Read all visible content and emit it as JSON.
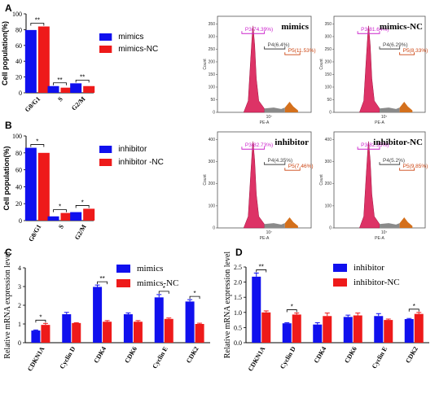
{
  "colors": {
    "blue": "#1010ee",
    "red": "#ee1a1a",
    "hist_main": "#dd3366",
    "hist_grey": "#8a8a8a",
    "hist_orange": "#d4701c",
    "gate_p3": "#cc22cc",
    "gate_p4": "#444444",
    "gate_p5": "#cc4411"
  },
  "chart_data": [
    {
      "panel": "A",
      "type": "bar",
      "ylabel": "Cell population(%)",
      "ylim": [
        0,
        100
      ],
      "yticks": [
        0,
        20,
        40,
        60,
        80,
        100
      ],
      "categories": [
        "G0/G1",
        "S",
        "G2/M"
      ],
      "series": [
        {
          "name": "mimics",
          "values": [
            79.5,
            8.5,
            12
          ]
        },
        {
          "name": "mimics-NC",
          "values": [
            84,
            6.5,
            8.5
          ]
        }
      ],
      "significance": [
        "**",
        "**",
        "**"
      ]
    },
    {
      "panel": "B",
      "type": "bar",
      "ylabel": "Cell population(%)",
      "ylim": [
        0,
        100
      ],
      "yticks": [
        0,
        20,
        40,
        60,
        80,
        100
      ],
      "categories": [
        "G0/G1",
        "S",
        "G2/M"
      ],
      "series": [
        {
          "name": "inhibitor",
          "values": [
            86,
            5,
            10
          ]
        },
        {
          "name": "inhibitor -NC",
          "values": [
            80,
            9,
            14
          ]
        }
      ],
      "significance": [
        "*",
        "*",
        "*"
      ]
    },
    {
      "panel": "C",
      "type": "bar",
      "ylabel": "Relative mRNA expression level",
      "ylim": [
        0,
        4
      ],
      "yticks": [
        0,
        1,
        2,
        3,
        4
      ],
      "categories": [
        "CDKN1A",
        "Cyclin D",
        "CDK4",
        "CDK6",
        "Cyclin E",
        "CDK2"
      ],
      "series": [
        {
          "name": "mimics",
          "values": [
            0.65,
            1.52,
            2.98,
            1.52,
            2.42,
            2.2
          ],
          "errors": [
            0.03,
            0.1,
            0.1,
            0.07,
            0.15,
            0.1
          ]
        },
        {
          "name": "mimics-NC",
          "values": [
            0.95,
            1.05,
            1.12,
            1.12,
            1.27,
            1.0
          ],
          "errors": [
            0.08,
            0.02,
            0.06,
            0.06,
            0.05,
            0.04
          ]
        }
      ],
      "significance": [
        "*",
        "",
        "**",
        "",
        "*",
        "*"
      ]
    },
    {
      "panel": "D",
      "type": "bar",
      "ylabel": "Relative mRNA expression level",
      "ylim": [
        0,
        2.5
      ],
      "yticks": [
        0.0,
        0.5,
        1.0,
        1.5,
        2.0,
        2.5
      ],
      "categories": [
        "CDKN1A",
        "Cyclin D",
        "CDK4",
        "CDK6",
        "Cyclin E",
        "CDK2"
      ],
      "series": [
        {
          "name": "inhibitor",
          "values": [
            2.18,
            0.64,
            0.6,
            0.85,
            0.88,
            0.78
          ],
          "errors": [
            0.12,
            0.02,
            0.06,
            0.06,
            0.08,
            0.02
          ]
        },
        {
          "name": "inhibitor-NC",
          "values": [
            1.0,
            0.93,
            0.88,
            0.9,
            0.75,
            0.95
          ],
          "errors": [
            0.05,
            0.05,
            0.1,
            0.08,
            0.03,
            0.05
          ]
        }
      ],
      "significance": [
        "**",
        "*",
        "",
        "",
        "",
        "*"
      ]
    }
  ],
  "histograms": [
    {
      "title": "mimics",
      "yticks": [
        "0",
        "50",
        "100",
        "150",
        "200",
        "250",
        "300",
        "350"
      ],
      "xlabel": "PE-A",
      "ylabel": "Count",
      "xtick": "10⁷",
      "p3": "P3(74.39%)",
      "p4": "P4(6.4%)",
      "p5": "P5(11.53%)"
    },
    {
      "title": "mimics-NC",
      "yticks": [
        "0",
        "50",
        "100",
        "150",
        "200",
        "250",
        "300",
        "350"
      ],
      "xlabel": "PE-A",
      "ylabel": "Count",
      "xtick": "10⁷",
      "p3": "P3(81.64%)",
      "p4": "P4(6.29%)",
      "p5": "P5(8.33%)"
    },
    {
      "title": "inhibitor",
      "yticks": [
        "0",
        "100",
        "200",
        "300",
        "400"
      ],
      "xlabel": "PE-A",
      "ylabel": "Count",
      "xtick": "10⁷",
      "p3": "P3(82.73%)",
      "p4": "P4(4.35%)",
      "p5": "P5(7.46%)"
    },
    {
      "title": "inhibitor-NC",
      "yticks": [
        "0",
        "100",
        "200",
        "300",
        "400"
      ],
      "xlabel": "PE-A",
      "ylabel": "Count",
      "xtick": "10⁷",
      "p3": "P3(82.35%)",
      "p4": "P4(5.2%)",
      "p5": "P5(9.85%)"
    }
  ],
  "panel_labels": [
    "A",
    "B",
    "C",
    "D"
  ]
}
